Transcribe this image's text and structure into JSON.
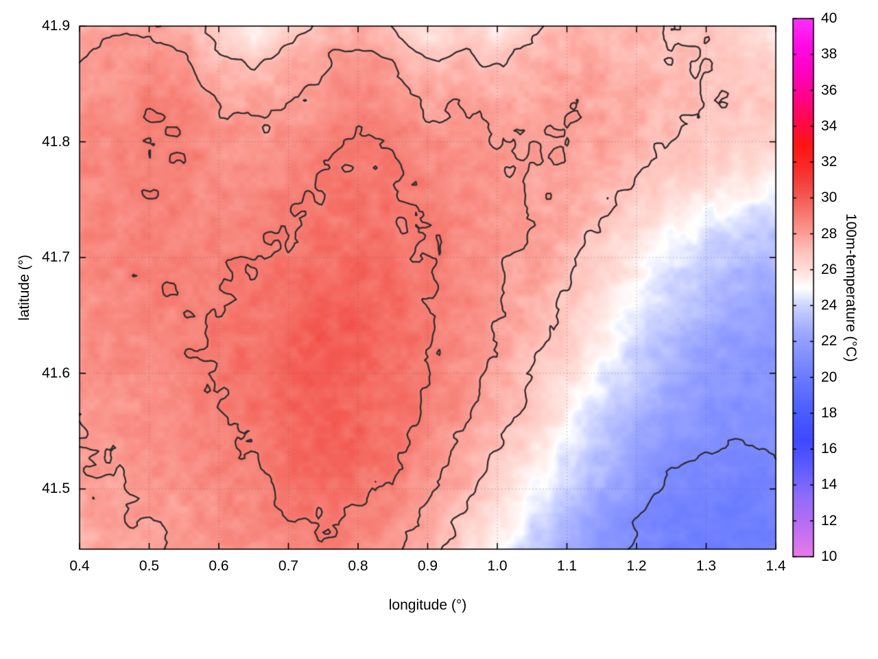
{
  "figure": {
    "background": "#ffffff",
    "xlabel": "longitude (°)",
    "ylabel": "latitude (°)",
    "cblabel": "100m-temperature (°C)"
  },
  "chart_data": {
    "type": "heatmap",
    "title": "",
    "xlabel": "longitude (°)",
    "ylabel": "latitude (°)",
    "colorbar_label": "100m-temperature (°C)",
    "x_range": [
      0.4,
      1.4
    ],
    "y_range": [
      41.448,
      41.9
    ],
    "color_range": [
      10,
      40
    ],
    "x_ticks": [
      "0.4",
      "0.5",
      "0.6",
      "0.7",
      "0.8",
      "0.9",
      "1.0",
      "1.1",
      "1.2",
      "1.3",
      "1.4"
    ],
    "y_ticks": [
      "41.5",
      "41.6",
      "41.7",
      "41.8",
      "41.9"
    ],
    "colorbar_ticks": [
      "10",
      "12",
      "14",
      "16",
      "18",
      "20",
      "22",
      "24",
      "26",
      "28",
      "30",
      "32",
      "34",
      "36",
      "38",
      "40"
    ],
    "grid_lines": true,
    "contour_levels": [
      21,
      27,
      28,
      29
    ],
    "contour_color": "#2e2e2e",
    "palette": [
      [
        10,
        "#e87ae8"
      ],
      [
        12,
        "#b46cf4"
      ],
      [
        13.5,
        "#8a6cfa"
      ],
      [
        15,
        "#5c5cff"
      ],
      [
        16.5,
        "#3f48ff"
      ],
      [
        18,
        "#4a5cff"
      ],
      [
        19.5,
        "#6274ff"
      ],
      [
        21,
        "#7e8cff"
      ],
      [
        22.5,
        "#9da8ff"
      ],
      [
        24,
        "#cdd4ff"
      ],
      [
        25,
        "#ffffff"
      ],
      [
        26,
        "#ffded9"
      ],
      [
        27,
        "#ffc2bb"
      ],
      [
        28,
        "#fb9d94"
      ],
      [
        29,
        "#f67d73"
      ],
      [
        30,
        "#f35c54"
      ],
      [
        31,
        "#f43d3a"
      ],
      [
        32,
        "#fb2424"
      ],
      [
        33,
        "#ff1414"
      ],
      [
        34,
        "#ff0a40"
      ],
      [
        35.5,
        "#ff0482"
      ],
      [
        37,
        "#fe02c0"
      ],
      [
        38.5,
        "#ff0ae6"
      ],
      [
        40,
        "#ff30fc"
      ]
    ],
    "grid": {
      "lon_start": 0.4,
      "lon_step": 0.05,
      "cols": 21,
      "lat_start": 41.9,
      "lat_step": -0.03,
      "rows": 16,
      "units": "°C",
      "values": [
        [
          27.6,
          27.8,
          27.9,
          27.5,
          26.6,
          24.9,
          26.6,
          27.3,
          27.6,
          27.0,
          25.7,
          26.4,
          25.6,
          26.9,
          27.3,
          27.4,
          27.2,
          27.0,
          26.8,
          26.2,
          25.4
        ],
        [
          28.0,
          28.2,
          28.4,
          28.1,
          27.3,
          26.7,
          27.4,
          27.9,
          28.4,
          28.0,
          27.0,
          27.2,
          26.8,
          27.4,
          27.6,
          27.5,
          27.3,
          27.1,
          27.0,
          26.8,
          26.5
        ],
        [
          28.3,
          28.5,
          28.8,
          28.7,
          27.9,
          27.6,
          27.9,
          28.3,
          28.8,
          28.5,
          27.8,
          27.8,
          27.5,
          27.8,
          27.9,
          27.7,
          27.4,
          27.2,
          27.0,
          26.9,
          26.8
        ],
        [
          28.4,
          28.6,
          29.0,
          28.9,
          28.3,
          28.1,
          28.3,
          28.6,
          29.0,
          28.8,
          28.2,
          28.2,
          27.9,
          28.0,
          28.0,
          27.8,
          27.4,
          27.1,
          26.9,
          26.7,
          26.6
        ],
        [
          28.5,
          28.7,
          29.0,
          28.9,
          28.5,
          28.4,
          28.6,
          28.9,
          29.2,
          29.0,
          28.6,
          28.4,
          28.1,
          28.0,
          28.0,
          27.6,
          27.2,
          26.8,
          26.5,
          26.2,
          26.0
        ],
        [
          28.5,
          28.7,
          28.9,
          28.8,
          28.6,
          28.6,
          28.8,
          29.1,
          29.3,
          29.1,
          28.8,
          28.5,
          28.2,
          27.9,
          27.8,
          27.2,
          26.6,
          26.0,
          25.5,
          25.0,
          24.6
        ],
        [
          28.5,
          28.7,
          28.9,
          28.8,
          28.7,
          28.8,
          29.0,
          29.3,
          29.4,
          29.2,
          28.9,
          28.6,
          28.2,
          27.9,
          27.5,
          26.8,
          26.0,
          25.1,
          24.4,
          23.8,
          23.4
        ],
        [
          28.5,
          28.7,
          28.9,
          28.9,
          28.9,
          29.0,
          29.3,
          29.5,
          29.6,
          29.4,
          29.0,
          28.6,
          28.2,
          27.8,
          27.2,
          26.4,
          25.4,
          24.4,
          23.6,
          23.0,
          22.8
        ],
        [
          28.4,
          28.6,
          28.8,
          28.9,
          29.0,
          29.2,
          29.5,
          29.8,
          29.8,
          29.5,
          29.1,
          28.6,
          28.1,
          27.6,
          26.9,
          25.9,
          24.8,
          23.8,
          23.0,
          22.4,
          22.2
        ],
        [
          28.3,
          28.5,
          28.7,
          28.9,
          29.1,
          29.4,
          29.8,
          30.0,
          29.9,
          29.6,
          29.1,
          28.5,
          28.0,
          27.4,
          26.5,
          25.4,
          24.2,
          23.2,
          22.4,
          21.9,
          21.8
        ],
        [
          28.2,
          28.4,
          28.6,
          28.8,
          29.1,
          29.4,
          29.8,
          30.0,
          29.9,
          29.5,
          29.0,
          28.4,
          27.8,
          27.0,
          26.0,
          24.8,
          23.6,
          22.6,
          21.9,
          21.5,
          21.4
        ],
        [
          28.1,
          28.3,
          28.5,
          28.7,
          29.0,
          29.3,
          29.7,
          29.9,
          29.8,
          29.4,
          28.8,
          28.2,
          27.5,
          26.6,
          25.4,
          24.1,
          22.9,
          22.1,
          21.5,
          21.2,
          21.2
        ],
        [
          27.9,
          28.1,
          28.3,
          28.5,
          28.8,
          29.1,
          29.5,
          29.7,
          29.6,
          29.2,
          28.6,
          27.9,
          27.1,
          26.0,
          24.7,
          23.4,
          22.3,
          21.6,
          21.2,
          21.0,
          21.1
        ],
        [
          27.8,
          28.0,
          28.2,
          28.4,
          28.6,
          28.9,
          29.2,
          29.4,
          29.3,
          29.0,
          28.3,
          27.5,
          26.5,
          25.3,
          24.0,
          22.8,
          21.8,
          20.9,
          20.6,
          20.5,
          20.7
        ],
        [
          27.7,
          27.9,
          28.1,
          28.2,
          28.4,
          28.7,
          29.0,
          29.1,
          29.0,
          28.6,
          27.9,
          27.0,
          25.8,
          24.5,
          23.2,
          22.1,
          21.1,
          20.5,
          20.2,
          20.2,
          20.5
        ],
        [
          27.6,
          27.8,
          27.9,
          28.0,
          28.2,
          28.4,
          28.6,
          28.8,
          28.6,
          28.2,
          27.4,
          26.4,
          25.1,
          23.8,
          22.6,
          21.6,
          20.8,
          20.3,
          20.1,
          20.2,
          20.5
        ]
      ]
    }
  }
}
